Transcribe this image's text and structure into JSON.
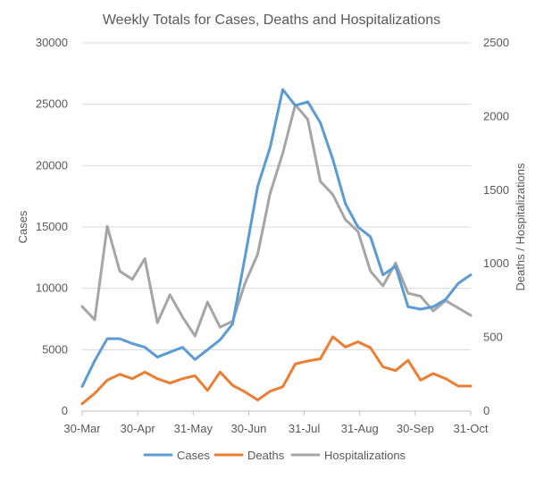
{
  "chart_data": {
    "type": "line",
    "title": "Weekly Totals for Cases, Deaths and Hospitalizations",
    "xlabel": "",
    "ylabel": "Cases",
    "y2label": "Deaths / Hospitalizations",
    "ylim": [
      0,
      30000
    ],
    "y2lim": [
      0,
      2500
    ],
    "yticks": [
      "0",
      "5000",
      "10000",
      "15000",
      "20000",
      "25000",
      "30000"
    ],
    "y2ticks": [
      "0",
      "500",
      "1000",
      "1500",
      "2000",
      "2500"
    ],
    "xtick_labels": [
      "30-Mar",
      "30-Apr",
      "31-May",
      "30-Jun",
      "31-Jul",
      "31-Aug",
      "30-Sep",
      "31-Oct"
    ],
    "x": [
      "30-Mar",
      "6-Apr",
      "13-Apr",
      "20-Apr",
      "27-Apr",
      "4-May",
      "11-May",
      "18-May",
      "25-May",
      "1-Jun",
      "8-Jun",
      "15-Jun",
      "22-Jun",
      "29-Jun",
      "6-Jul",
      "13-Jul",
      "20-Jul",
      "27-Jul",
      "3-Aug",
      "10-Aug",
      "17-Aug",
      "24-Aug",
      "31-Aug",
      "7-Sep",
      "14-Sep",
      "21-Sep",
      "28-Sep",
      "5-Oct",
      "12-Oct",
      "19-Oct",
      "26-Oct",
      "2-Nov"
    ],
    "grid": "horizontal",
    "legend_position": "bottom",
    "series": [
      {
        "name": "Cases",
        "axis": "left",
        "color": "#5b9bd5",
        "values": [
          2000,
          4100,
          5900,
          5900,
          5500,
          5200,
          4400,
          4800,
          5200,
          4200,
          5000,
          5800,
          7100,
          12600,
          18300,
          21500,
          26200,
          24900,
          25200,
          23500,
          20500,
          16900,
          15000,
          14200,
          11100,
          11800,
          8500,
          8300,
          8500,
          9100,
          10400,
          11100
        ]
      },
      {
        "name": "Deaths",
        "axis": "right",
        "color": "#ed7d31",
        "values": [
          50,
          120,
          210,
          250,
          220,
          265,
          220,
          190,
          220,
          240,
          140,
          265,
          175,
          130,
          75,
          135,
          165,
          320,
          340,
          355,
          505,
          435,
          470,
          430,
          300,
          275,
          345,
          210,
          255,
          220,
          170,
          170
        ]
      },
      {
        "name": "Hospitalizations",
        "axis": "right",
        "color": "#a5a5a5",
        "values": [
          710,
          620,
          1255,
          950,
          895,
          1035,
          600,
          790,
          640,
          510,
          740,
          570,
          610,
          870,
          1065,
          1480,
          1750,
          2080,
          1980,
          1560,
          1470,
          1300,
          1220,
          950,
          850,
          1005,
          800,
          780,
          680,
          750,
          700,
          650
        ]
      }
    ]
  }
}
